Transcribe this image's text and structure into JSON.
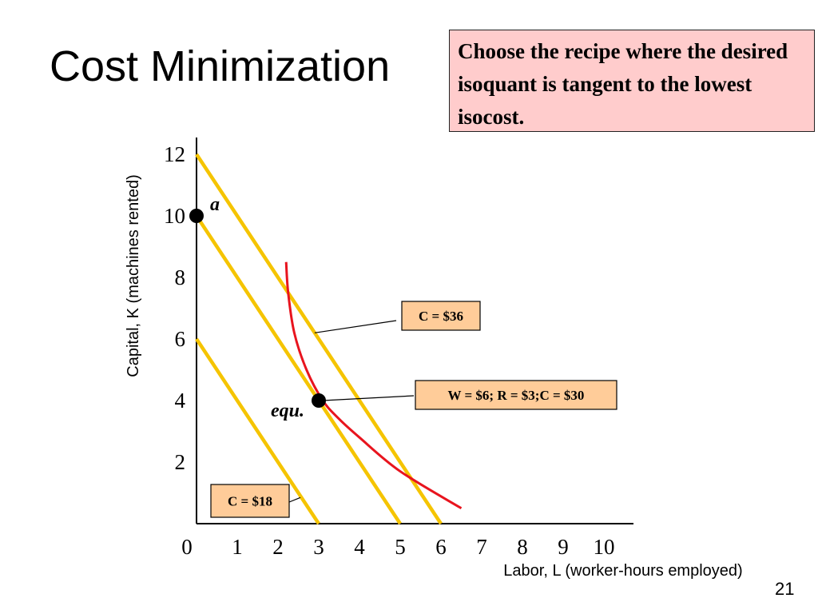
{
  "slide": {
    "title": "Cost Minimization",
    "note": "Choose the recipe where the desired isoquant is tangent to the lowest isocost.",
    "page_number": "21",
    "colors": {
      "note_bg": "#ffcccc",
      "label_bg": "#ffcc99",
      "isocost": "#f5c400",
      "isoquant": "#e8141e"
    }
  },
  "chart_data": {
    "type": "line",
    "xlabel": "Labor, L (worker-hours employed)",
    "ylabel": "Capital, K (machines rented)",
    "xlim": [
      0,
      10
    ],
    "ylim": [
      0,
      12
    ],
    "x_ticks": [
      "0",
      "1",
      "2",
      "3",
      "4",
      "5",
      "6",
      "7",
      "8",
      "9",
      "10"
    ],
    "y_ticks": [
      "2",
      "4",
      "6",
      "8",
      "10",
      "12"
    ],
    "grid": false,
    "series": [
      {
        "kind": "isocost",
        "x": [
          0,
          3
        ],
        "y": [
          6,
          0
        ]
      },
      {
        "kind": "isocost",
        "x": [
          0,
          5
        ],
        "y": [
          10,
          0
        ]
      },
      {
        "kind": "isocost",
        "x": [
          0,
          6
        ],
        "y": [
          12,
          0
        ]
      },
      {
        "kind": "isoquant",
        "x": [
          2.2,
          2.25,
          2.4,
          2.7,
          3.1,
          3.5,
          4,
          5,
          6.5
        ],
        "y": [
          8.5,
          7.5,
          6.2,
          5,
          4,
          3.4,
          2.8,
          1.7,
          0.5
        ]
      }
    ],
    "points": [
      {
        "label": "a",
        "x": 0,
        "y": 10
      },
      {
        "label": "equ.",
        "x": 3,
        "y": 4
      }
    ],
    "annotations": [
      {
        "text": "C = $36",
        "from_x": 2.9,
        "from_y": 6.2
      },
      {
        "text": "W = $6; R = $3;C = $30",
        "from_x": 3.1,
        "from_y": 4
      },
      {
        "text": "C = $18",
        "from_x": 2.55,
        "from_y": 0.85
      }
    ]
  }
}
